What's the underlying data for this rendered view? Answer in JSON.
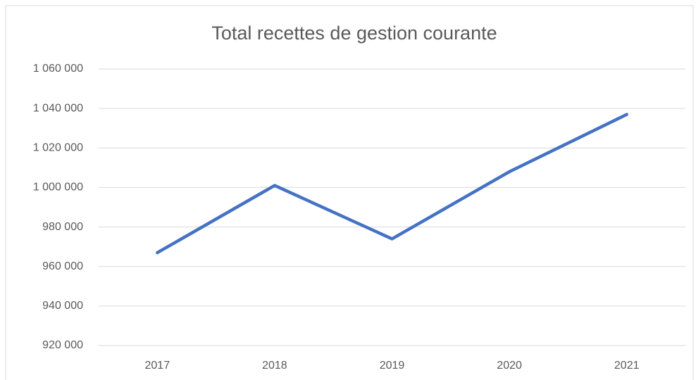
{
  "chart_data": {
    "type": "line",
    "title": "Total recettes de gestion courante",
    "categories": [
      "2017",
      "2018",
      "2019",
      "2020",
      "2021"
    ],
    "values": [
      967000,
      1001000,
      974000,
      1008000,
      1037000
    ],
    "color": "#4472c4",
    "ylim": [
      920000,
      1060000
    ],
    "yticks": [
      {
        "value": 920000,
        "label": "920 000"
      },
      {
        "value": 940000,
        "label": "940 000"
      },
      {
        "value": 960000,
        "label": "960 000"
      },
      {
        "value": 980000,
        "label": "980 000"
      },
      {
        "value": 1000000,
        "label": "1 000 000"
      },
      {
        "value": 1020000,
        "label": "1 020 000"
      },
      {
        "value": 1040000,
        "label": "1 040 000"
      },
      {
        "value": 1060000,
        "label": "1 060 000"
      }
    ],
    "grid": true
  }
}
